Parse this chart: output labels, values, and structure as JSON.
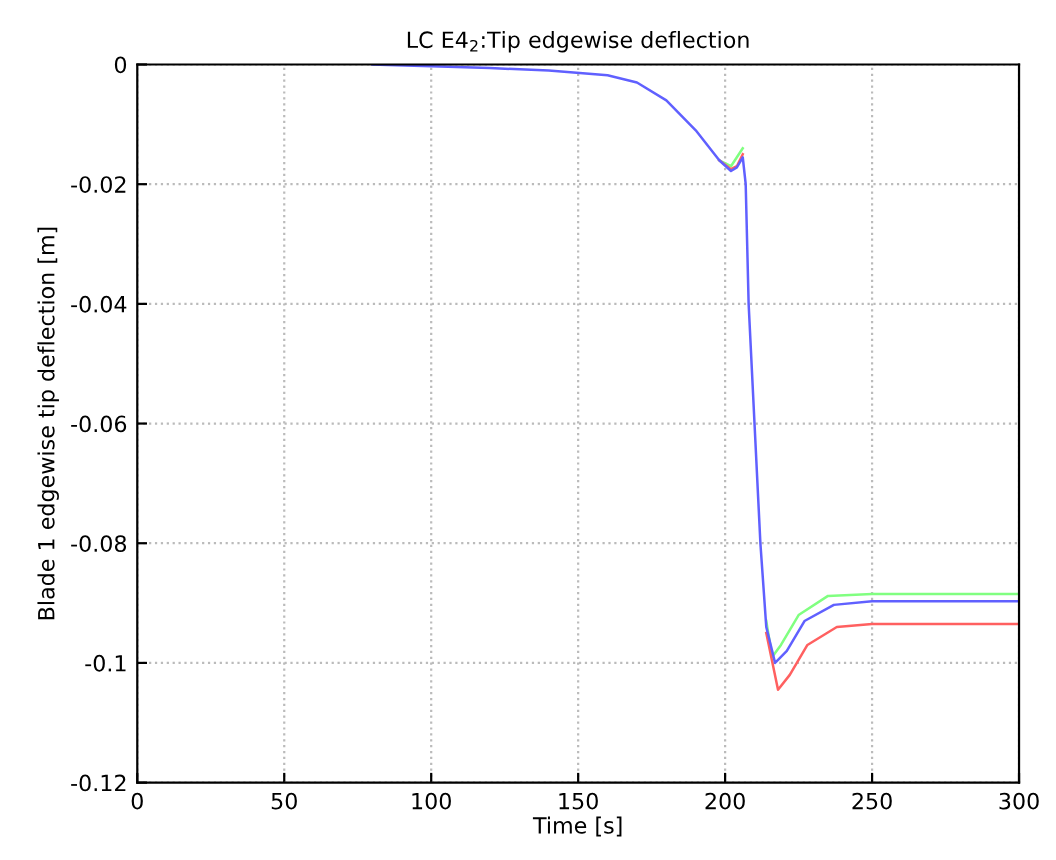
{
  "chart_data": {
    "type": "line",
    "title": "LC E4$_{2}$:Tip edgewise deflection",
    "xlabel": "Time [s]",
    "ylabel": "Blade 1 edgewise tip deflection [m]",
    "xlim": [
      0,
      300
    ],
    "ylim": [
      -0.12,
      0
    ],
    "xticks": [
      0,
      50,
      100,
      150,
      200,
      250,
      300
    ],
    "yticks": [
      -0.12,
      -0.1,
      -0.08,
      -0.06,
      -0.04,
      -0.02,
      0
    ],
    "grid": true,
    "line_style": "solid",
    "marker": "none",
    "series": [
      {
        "color": "#80ff80",
        "x": [
          198,
          202,
          204,
          206,
          207,
          208,
          210,
          212,
          214,
          216,
          219,
          225,
          235,
          250,
          300
        ],
        "values": [
          -0.016,
          -0.017,
          -0.0155,
          -0.014,
          null,
          null,
          null,
          null,
          -0.093,
          -0.099,
          -0.097,
          -0.092,
          -0.0888,
          -0.0885,
          -0.0885
        ]
      },
      {
        "color": "#ff6060",
        "x": [
          198,
          202,
          204,
          206,
          207,
          208,
          210,
          212,
          214,
          218,
          222,
          228,
          238,
          250,
          300
        ],
        "values": [
          -0.016,
          -0.0175,
          -0.017,
          -0.015,
          null,
          null,
          null,
          null,
          -0.095,
          -0.1045,
          -0.102,
          -0.097,
          -0.094,
          -0.0935,
          -0.0935
        ]
      },
      {
        "color": "#6060ff",
        "x": [
          80,
          100,
          120,
          140,
          160,
          170,
          180,
          190,
          198,
          202,
          204,
          206,
          207,
          208,
          210,
          212,
          214,
          217,
          221,
          227,
          237,
          250,
          300
        ],
        "values": [
          0,
          -0.0003,
          -0.0006,
          -0.001,
          -0.0018,
          -0.003,
          -0.006,
          -0.011,
          -0.016,
          -0.0178,
          -0.0172,
          -0.0155,
          -0.02,
          -0.04,
          -0.06,
          -0.08,
          -0.094,
          -0.1,
          -0.098,
          -0.093,
          -0.0903,
          -0.0897,
          -0.0897
        ]
      }
    ]
  }
}
